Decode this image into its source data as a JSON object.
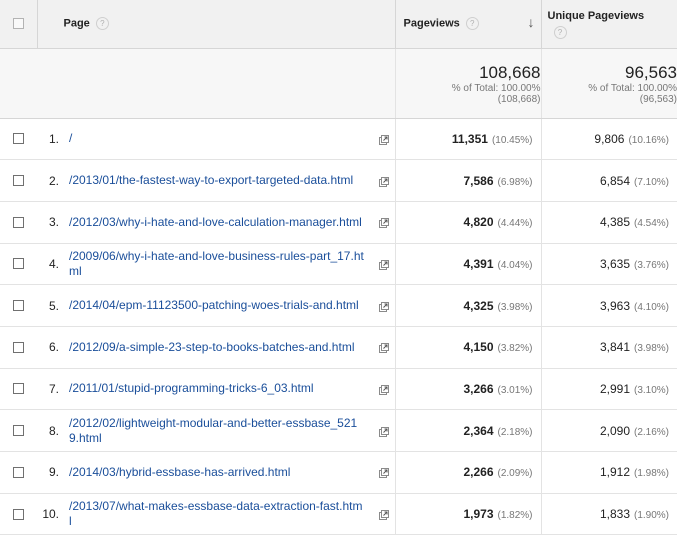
{
  "header": {
    "page_label": "Page",
    "pageviews_label": "Pageviews",
    "unique_label_line1": "Unique Pageviews",
    "help_glyph": "?",
    "sort_glyph": "↓"
  },
  "totals": {
    "pageviews": {
      "value": "108,668",
      "pct": "% of Total: 100.00%",
      "abs": "(108,668)"
    },
    "unique": {
      "value": "96,563",
      "pct": "% of Total: 100.00%",
      "abs": "(96,563)"
    }
  },
  "rows": [
    {
      "index": "1.",
      "page": "/",
      "pageviews": "11,351",
      "pv_pct": "(10.45%)",
      "unique": "9,806",
      "u_pct": "(10.16%)"
    },
    {
      "index": "2.",
      "page": "/2013/01/the-fastest-way-to-export-targeted-data.html",
      "pageviews": "7,586",
      "pv_pct": "(6.98%)",
      "unique": "6,854",
      "u_pct": "(7.10%)"
    },
    {
      "index": "3.",
      "page": "/2012/03/why-i-hate-and-love-calculation-manager.html",
      "pageviews": "4,820",
      "pv_pct": "(4.44%)",
      "unique": "4,385",
      "u_pct": "(4.54%)"
    },
    {
      "index": "4.",
      "page": "/2009/06/why-i-hate-and-love-business-rules-part_17.html",
      "pageviews": "4,391",
      "pv_pct": "(4.04%)",
      "unique": "3,635",
      "u_pct": "(3.76%)"
    },
    {
      "index": "5.",
      "page": "/2014/04/epm-11123500-patching-woes-trials-and.html",
      "pageviews": "4,325",
      "pv_pct": "(3.98%)",
      "unique": "3,963",
      "u_pct": "(4.10%)"
    },
    {
      "index": "6.",
      "page": "/2012/09/a-simple-23-step-to-books-batches-and.html",
      "pageviews": "4,150",
      "pv_pct": "(3.82%)",
      "unique": "3,841",
      "u_pct": "(3.98%)"
    },
    {
      "index": "7.",
      "page": "/2011/01/stupid-programming-tricks-6_03.html",
      "pageviews": "3,266",
      "pv_pct": "(3.01%)",
      "unique": "2,991",
      "u_pct": "(3.10%)"
    },
    {
      "index": "8.",
      "page": "/2012/02/lightweight-modular-and-better-essbase_5219.html",
      "pageviews": "2,364",
      "pv_pct": "(2.18%)",
      "unique": "2,090",
      "u_pct": "(2.16%)"
    },
    {
      "index": "9.",
      "page": "/2014/03/hybrid-essbase-has-arrived.html",
      "pageviews": "2,266",
      "pv_pct": "(2.09%)",
      "unique": "1,912",
      "u_pct": "(1.98%)"
    },
    {
      "index": "10.",
      "page": "/2013/07/what-makes-essbase-data-extraction-fast.html",
      "pageviews": "1,973",
      "pv_pct": "(1.82%)",
      "unique": "1,833",
      "u_pct": "(1.90%)"
    }
  ]
}
